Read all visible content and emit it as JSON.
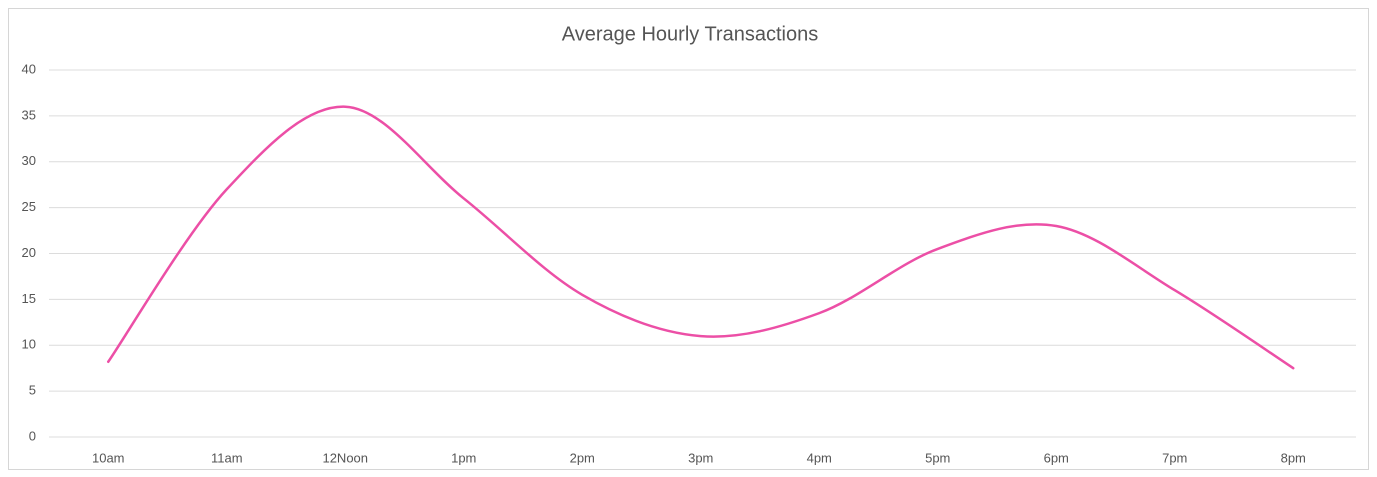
{
  "chart_data": {
    "type": "line",
    "title": "Average Hourly Transactions",
    "categories": [
      "10am",
      "11am",
      "12Noon",
      "1pm",
      "2pm",
      "3pm",
      "4pm",
      "5pm",
      "6pm",
      "7pm",
      "8pm"
    ],
    "series": [
      {
        "name": "Transactions",
        "color": "#ec4fa6",
        "values": [
          8.2,
          27,
          36,
          26,
          15.5,
          11,
          13.5,
          20.5,
          23,
          16,
          7.5
        ]
      }
    ],
    "ylim": [
      0,
      40
    ],
    "yticks": [
      0,
      5,
      10,
      15,
      20,
      25,
      30,
      35,
      40
    ],
    "grid": true,
    "smooth": true
  }
}
